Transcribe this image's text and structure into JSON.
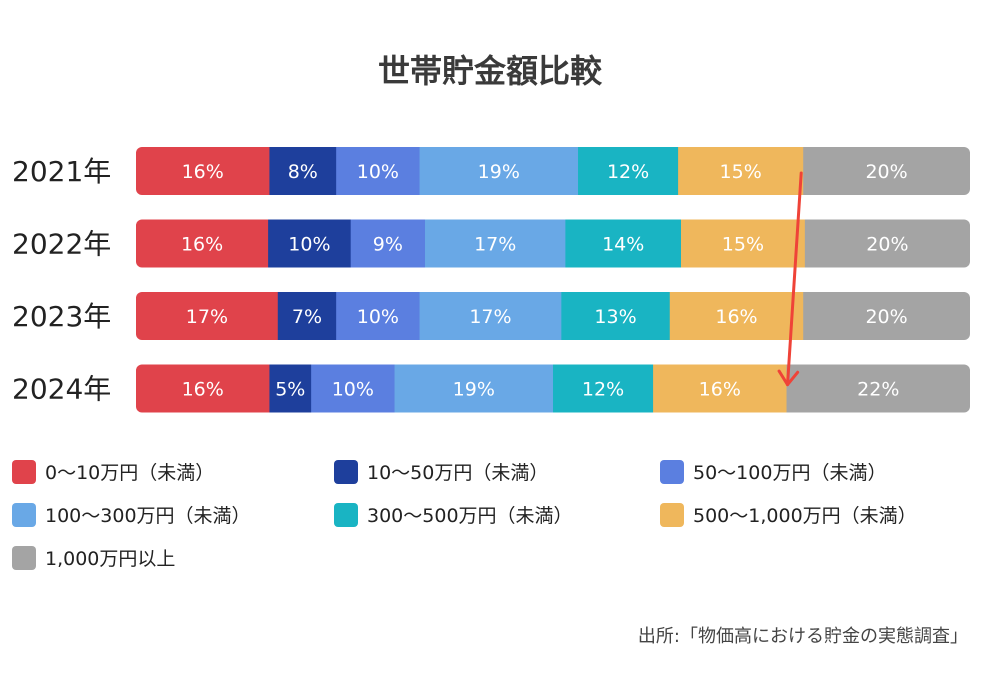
{
  "chart_data": {
    "type": "bar",
    "orientation": "horizontal",
    "stacked": true,
    "title": "世帯貯金額比較",
    "categories": [
      "2021年",
      "2022年",
      "2023年",
      "2024年"
    ],
    "series": [
      {
        "name": "0〜10万円（未満）",
        "color": "#e0434b",
        "values": [
          16,
          16,
          17,
          16
        ]
      },
      {
        "name": "10〜50万円（未満）",
        "color": "#1e3f9c",
        "values": [
          8,
          10,
          7,
          5
        ]
      },
      {
        "name": "50〜100万円（未満）",
        "color": "#5b7fe0",
        "values": [
          10,
          9,
          10,
          10
        ]
      },
      {
        "name": "100〜300万円（未満）",
        "color": "#69a8e6",
        "values": [
          19,
          17,
          17,
          19
        ]
      },
      {
        "name": "300〜500万円（未満）",
        "color": "#19b4c3",
        "values": [
          12,
          14,
          13,
          12
        ]
      },
      {
        "name": "500〜1,000万円（未満）",
        "color": "#efb75c",
        "values": [
          15,
          15,
          16,
          16
        ]
      },
      {
        "name": "1,000万円以上",
        "color": "#a4a4a4",
        "values": [
          20,
          20,
          20,
          22
        ]
      }
    ],
    "unit": "%",
    "legend_position": "bottom",
    "annotation": {
      "type": "arrow",
      "color": "#ef4338",
      "from": "2021年 boundary between 500〜1,000万円 and 1,000万円以上",
      "to": "2024年 boundary between 500〜1,000万円 and 1,000万円以上"
    },
    "source": "出所:「物価高における貯金の実態調査」"
  }
}
